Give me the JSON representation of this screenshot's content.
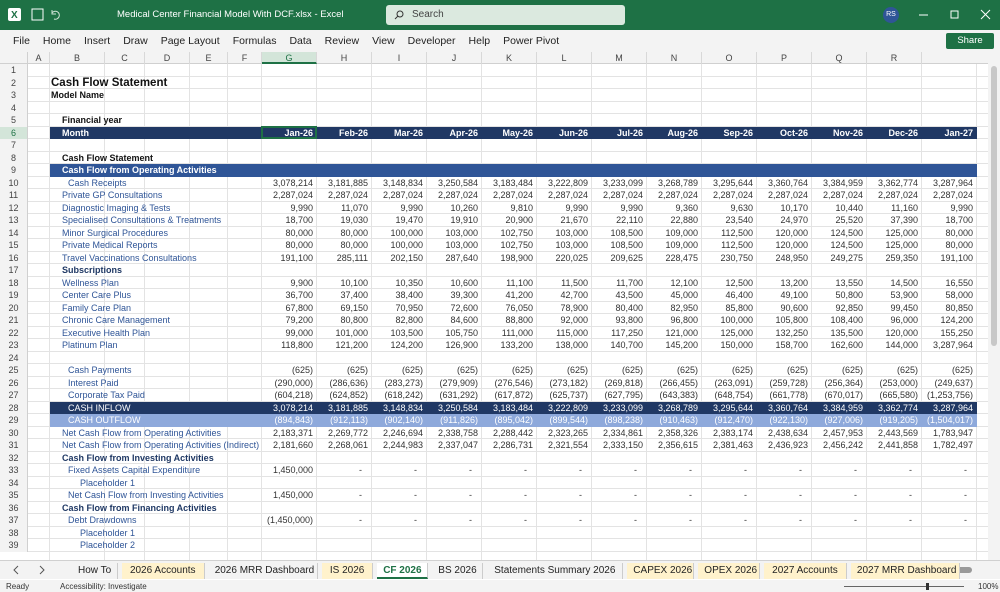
{
  "window": {
    "file_title": "Medical Center  Financial Model With DCF.xlsx  -  Excel",
    "search": "Search",
    "user_initials": "RS"
  },
  "menu": {
    "tabs": [
      "File",
      "Home",
      "Insert",
      "Draw",
      "Page Layout",
      "Formulas",
      "Data",
      "Review",
      "View",
      "Developer",
      "Help",
      "Power Pivot"
    ],
    "share": "Share"
  },
  "sheet": {
    "columns": [
      "A",
      "B",
      "C",
      "D",
      "E",
      "F",
      "G",
      "H",
      "I",
      "J",
      "K",
      "L",
      "M",
      "N",
      "O",
      "P",
      "Q",
      "R"
    ],
    "rows": [
      {
        "number": 1
      },
      {
        "number": 2,
        "label": "Cash Flow Statement"
      },
      {
        "number": 3,
        "label": "Model Name"
      },
      {
        "number": 4
      },
      {
        "number": 5,
        "label": "Financial year"
      },
      {
        "number": 6,
        "label": "Month",
        "values": [
          "Jan-26",
          "Feb-26",
          "Mar-26",
          "Apr-26",
          "May-26",
          "Jun-26",
          "Jul-26",
          "Aug-26",
          "Sep-26",
          "Oct-26",
          "Nov-26",
          "Dec-26",
          "Jan-27"
        ]
      },
      {
        "number": 7
      },
      {
        "number": 8,
        "label": "Cash Flow Statement"
      },
      {
        "number": 9,
        "label": "Cash Flow from Operating Activities"
      },
      {
        "number": 10,
        "label": "Cash Receipts",
        "values": [
          "3,078,214",
          "3,181,885",
          "3,148,834",
          "3,250,584",
          "3,183,484",
          "3,222,809",
          "3,233,099",
          "3,268,789",
          "3,295,644",
          "3,360,764",
          "3,384,959",
          "3,362,774",
          "3,287,964"
        ]
      },
      {
        "number": 11,
        "label": "Private GP Consultations",
        "values": [
          "2,287,024",
          "2,287,024",
          "2,287,024",
          "2,287,024",
          "2,287,024",
          "2,287,024",
          "2,287,024",
          "2,287,024",
          "2,287,024",
          "2,287,024",
          "2,287,024",
          "2,287,024",
          "2,287,024"
        ]
      },
      {
        "number": 12,
        "label": "Diagnostic Imaging & Tests",
        "values": [
          "9,990",
          "11,070",
          "9,990",
          "10,260",
          "9,810",
          "9,990",
          "9,990",
          "9,360",
          "9,630",
          "10,170",
          "10,440",
          "11,160",
          "9,990"
        ]
      },
      {
        "number": 13,
        "label": "Specialised Consultations & Treatments",
        "values": [
          "18,700",
          "19,030",
          "19,470",
          "19,910",
          "20,900",
          "21,670",
          "22,110",
          "22,880",
          "23,540",
          "24,970",
          "25,520",
          "37,390",
          "18,700"
        ]
      },
      {
        "number": 14,
        "label": "Minor Surgical Procedures",
        "values": [
          "80,000",
          "80,000",
          "100,000",
          "103,000",
          "102,750",
          "103,000",
          "108,500",
          "109,000",
          "112,500",
          "120,000",
          "124,500",
          "125,000",
          "80,000"
        ]
      },
      {
        "number": 15,
        "label": "Private Medical Reports",
        "values": [
          "80,000",
          "80,000",
          "100,000",
          "103,000",
          "102,750",
          "103,000",
          "108,500",
          "109,000",
          "112,500",
          "120,000",
          "124,500",
          "125,000",
          "80,000"
        ]
      },
      {
        "number": 16,
        "label": "Travel Vaccinations Consultations",
        "values": [
          "191,100",
          "285,111",
          "202,150",
          "287,640",
          "198,900",
          "220,025",
          "209,625",
          "228,475",
          "230,750",
          "248,950",
          "249,275",
          "259,350",
          "191,100"
        ]
      },
      {
        "number": 17,
        "label": "Subscriptions"
      },
      {
        "number": 18,
        "label": "Wellness Plan",
        "values": [
          "9,900",
          "10,100",
          "10,350",
          "10,600",
          "11,100",
          "11,500",
          "11,700",
          "12,100",
          "12,500",
          "13,200",
          "13,550",
          "14,500",
          "16,550"
        ]
      },
      {
        "number": 19,
        "label": "Center Care Plus",
        "values": [
          "36,700",
          "37,400",
          "38,400",
          "39,300",
          "41,200",
          "42,700",
          "43,500",
          "45,000",
          "46,400",
          "49,100",
          "50,800",
          "53,900",
          "58,000"
        ]
      },
      {
        "number": 20,
        "label": "Family Care Plan",
        "values": [
          "67,800",
          "69,150",
          "70,950",
          "72,600",
          "76,050",
          "78,900",
          "80,400",
          "82,950",
          "85,800",
          "90,600",
          "92,850",
          "99,450",
          "80,850"
        ]
      },
      {
        "number": 21,
        "label": "Chronic Care Management",
        "values": [
          "79,200",
          "80,800",
          "82,800",
          "84,600",
          "88,800",
          "92,000",
          "93,800",
          "96,800",
          "100,000",
          "105,800",
          "108,400",
          "96,000",
          "124,200"
        ]
      },
      {
        "number": 22,
        "label": "Executive Health Plan",
        "values": [
          "99,000",
          "101,000",
          "103,500",
          "105,750",
          "111,000",
          "115,000",
          "117,250",
          "121,000",
          "125,000",
          "132,250",
          "135,500",
          "120,000",
          "155,250"
        ]
      },
      {
        "number": 23,
        "label": "Platinum Plan",
        "values": [
          "118,800",
          "121,200",
          "124,200",
          "126,900",
          "133,200",
          "138,000",
          "140,700",
          "145,200",
          "150,000",
          "158,700",
          "162,600",
          "144,000",
          "3,287,964"
        ]
      },
      {
        "number": 24
      },
      {
        "number": 25,
        "label": "Cash Payments",
        "values": [
          "(625)",
          "(625)",
          "(625)",
          "(625)",
          "(625)",
          "(625)",
          "(625)",
          "(625)",
          "(625)",
          "(625)",
          "(625)",
          "(625)",
          "(625)"
        ]
      },
      {
        "number": 26,
        "label": "Interest Paid",
        "values": [
          "(290,000)",
          "(286,636)",
          "(283,273)",
          "(279,909)",
          "(276,546)",
          "(273,182)",
          "(269,818)",
          "(266,455)",
          "(263,091)",
          "(259,728)",
          "(256,364)",
          "(253,000)",
          "(249,637)"
        ]
      },
      {
        "number": 27,
        "label": "Corporate Tax Paid",
        "values": [
          "(604,218)",
          "(624,852)",
          "(618,242)",
          "(631,292)",
          "(617,872)",
          "(625,737)",
          "(627,795)",
          "(643,383)",
          "(648,754)",
          "(661,778)",
          "(670,017)",
          "(665,580)",
          "(1,253,756)"
        ]
      },
      {
        "number": 28,
        "label": "CASH INFLOW",
        "values": [
          "3,078,214",
          "3,181,885",
          "3,148,834",
          "3,250,584",
          "3,183,484",
          "3,222,809",
          "3,233,099",
          "3,268,789",
          "3,295,644",
          "3,360,764",
          "3,384,959",
          "3,362,774",
          "3,287,964"
        ]
      },
      {
        "number": 29,
        "label": "CASH OUTFLOW",
        "values": [
          "(894,843)",
          "(912,113)",
          "(902,140)",
          "(911,826)",
          "(895,042)",
          "(899,544)",
          "(898,238)",
          "(910,463)",
          "(912,470)",
          "(922,130)",
          "(927,006)",
          "(919,205)",
          "(1,504,017)"
        ]
      },
      {
        "number": 30,
        "label": "Net Cash Flow from Operating Activities",
        "values": [
          "2,183,371",
          "2,269,772",
          "2,246,694",
          "2,338,758",
          "2,288,442",
          "2,323,265",
          "2,334,861",
          "2,358,326",
          "2,383,174",
          "2,438,634",
          "2,457,953",
          "2,443,569",
          "1,783,947"
        ]
      },
      {
        "number": 31,
        "label": "Net Cash Flow from Operating Activities (Indirect)",
        "values": [
          "2,181,660",
          "2,268,061",
          "2,244,983",
          "2,337,047",
          "2,286,731",
          "2,321,554",
          "2,333,150",
          "2,356,615",
          "2,381,463",
          "2,436,923",
          "2,456,242",
          "2,441,858",
          "1,782,497"
        ]
      },
      {
        "number": 32,
        "label": "Cash Flow from Investing Activities"
      },
      {
        "number": 33,
        "label": "Fixed Assets Capital Expenditure",
        "values": [
          "1,450,000",
          "-",
          "-",
          "-",
          "-",
          "-",
          "-",
          "-",
          "-",
          "-",
          "-",
          "-",
          "-"
        ]
      },
      {
        "number": 34,
        "label": "Placeholder 1"
      },
      {
        "number": 35,
        "label": "Net Cash Flow from Investing Activities",
        "values": [
          "1,450,000",
          "-",
          "-",
          "-",
          "-",
          "-",
          "-",
          "-",
          "-",
          "-",
          "-",
          "-",
          "-"
        ]
      },
      {
        "number": 36,
        "label": "Cash Flow from Financing Activities"
      },
      {
        "number": 37,
        "label": "Debt Drawdowns",
        "values": [
          "(1,450,000)",
          "-",
          "-",
          "-",
          "-",
          "-",
          "-",
          "-",
          "-",
          "-",
          "-",
          "-",
          "-"
        ]
      },
      {
        "number": 38,
        "label": "Placeholder 1"
      },
      {
        "number": 39,
        "label": "Placeholder 2"
      }
    ]
  },
  "sheet_tabs": [
    "How To",
    "2026 Accounts",
    "2026 MRR Dashboard",
    "IS 2026",
    "CF 2026",
    "BS 2026",
    "Statements Summary 2026",
    "CAPEX 2026",
    "OPEX 2026",
    "2027 Accounts",
    "2027 MRR Dashboard"
  ],
  "status": {
    "ready": "Ready",
    "accessibility": "Accessibility: Investigate",
    "zoom": "100%"
  }
}
